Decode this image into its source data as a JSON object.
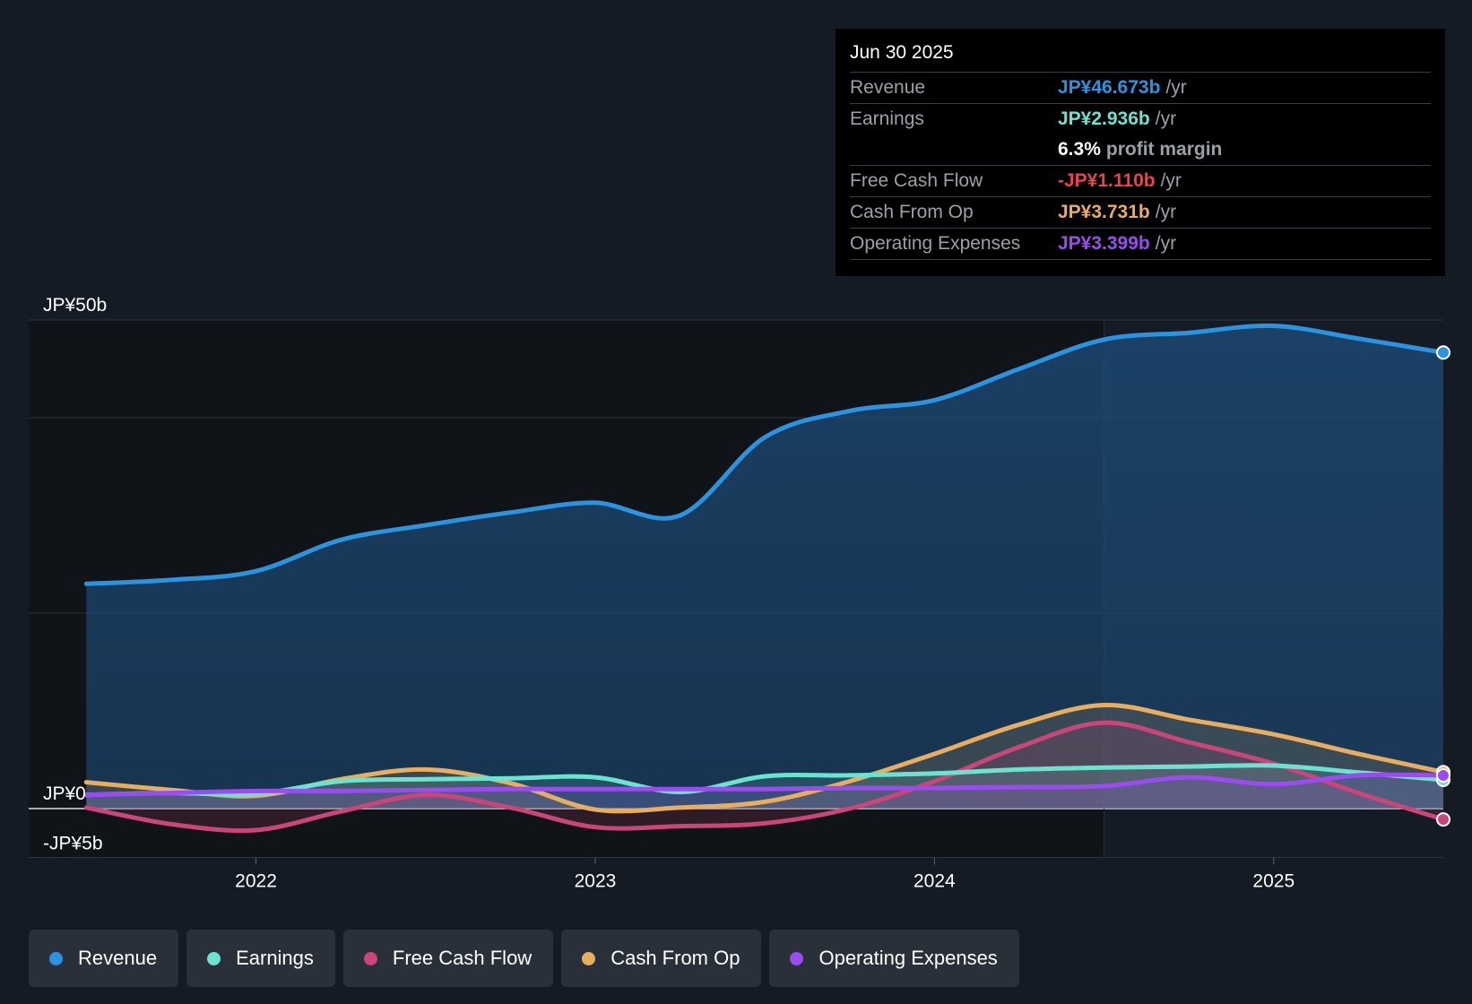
{
  "colors": {
    "revenue": "#2b93e0",
    "earnings": "#6be3d0",
    "free_cash_flow": "#c9457a",
    "cash_from_op": "#e8ad5f",
    "operating_expenses": "#9b4cf0"
  },
  "tooltip": {
    "date": "Jun 30 2025",
    "rows": [
      {
        "label": "Revenue",
        "value": "JP¥46.673b",
        "unit": "/yr"
      },
      {
        "label": "Earnings",
        "value": "JP¥2.936b",
        "unit": "/yr"
      },
      {
        "label": "",
        "value": "6.3%",
        "unit": "profit margin"
      },
      {
        "label": "Free Cash Flow",
        "value": "-JP¥1.110b",
        "unit": "/yr"
      },
      {
        "label": "Cash From Op",
        "value": "JP¥3.731b",
        "unit": "/yr"
      },
      {
        "label": "Operating Expenses",
        "value": "JP¥3.399b",
        "unit": "/yr"
      }
    ]
  },
  "legend": [
    {
      "label": "Revenue",
      "color": "#2b93e0"
    },
    {
      "label": "Earnings",
      "color": "#6be3d0"
    },
    {
      "label": "Free Cash Flow",
      "color": "#c9457a"
    },
    {
      "label": "Cash From Op",
      "color": "#e8ad5f"
    },
    {
      "label": "Operating Expenses",
      "color": "#9b4cf0"
    }
  ],
  "chart_data": {
    "type": "area",
    "title": "",
    "xlabel": "",
    "ylabel": "",
    "ylim": [
      -5,
      50
    ],
    "xlim": [
      2021.33,
      2025.5
    ],
    "y_tick_labels": [
      {
        "value": 50,
        "label": "JP¥50b"
      },
      {
        "value": 0,
        "label": "JP¥0"
      },
      {
        "value": -5,
        "label": "-JP¥5b"
      }
    ],
    "x_ticks": [
      {
        "value": 2022,
        "label": "2022"
      },
      {
        "value": 2023,
        "label": "2023"
      },
      {
        "value": 2024,
        "label": "2024"
      },
      {
        "value": 2025,
        "label": "2025"
      }
    ],
    "gridlines": [
      50,
      40,
      20,
      0
    ],
    "past_boundary_x": 2024.5,
    "series": [
      {
        "name": "Revenue",
        "key": "revenue",
        "x": [
          2021.5,
          2021.75,
          2022.0,
          2022.25,
          2022.5,
          2022.75,
          2023.0,
          2023.25,
          2023.5,
          2023.75,
          2024.0,
          2024.25,
          2024.5,
          2024.75,
          2025.0,
          2025.25,
          2025.5
        ],
        "y": [
          23.0,
          23.4,
          24.3,
          27.5,
          29.0,
          30.3,
          31.3,
          30.0,
          38.0,
          40.7,
          41.8,
          45.0,
          48.0,
          48.7,
          49.4,
          48.1,
          46.673
        ]
      },
      {
        "name": "Earnings",
        "key": "earnings",
        "x": [
          2021.5,
          2021.75,
          2022.0,
          2022.25,
          2022.5,
          2022.75,
          2023.0,
          2023.25,
          2023.5,
          2023.75,
          2024.0,
          2024.25,
          2024.5,
          2024.75,
          2025.0,
          2025.25,
          2025.5
        ],
        "y": [
          1.4,
          1.6,
          1.5,
          2.8,
          3.0,
          3.1,
          3.2,
          1.7,
          3.3,
          3.4,
          3.6,
          4.0,
          4.2,
          4.3,
          4.4,
          3.7,
          2.936
        ]
      },
      {
        "name": "Free Cash Flow",
        "key": "free_cash_flow",
        "x": [
          2021.5,
          2021.75,
          2022.0,
          2022.25,
          2022.5,
          2022.75,
          2023.0,
          2023.25,
          2023.5,
          2023.75,
          2024.0,
          2024.25,
          2024.5,
          2024.75,
          2025.0,
          2025.25,
          2025.5
        ],
        "y": [
          0.1,
          -1.6,
          -2.2,
          -0.3,
          1.4,
          0.1,
          -1.9,
          -1.8,
          -1.5,
          0.0,
          2.8,
          6.3,
          8.8,
          6.8,
          4.6,
          1.6,
          -1.11
        ]
      },
      {
        "name": "Cash From Op",
        "key": "cash_from_op",
        "x": [
          2021.5,
          2021.75,
          2022.0,
          2022.25,
          2022.5,
          2022.75,
          2023.0,
          2023.25,
          2023.5,
          2023.75,
          2024.0,
          2024.25,
          2024.5,
          2024.75,
          2025.0,
          2025.25,
          2025.5
        ],
        "y": [
          2.7,
          1.9,
          1.3,
          3.0,
          4.0,
          2.6,
          -0.1,
          0.1,
          0.7,
          2.8,
          5.6,
          8.6,
          10.6,
          9.1,
          7.6,
          5.6,
          3.731
        ]
      },
      {
        "name": "Operating Expenses",
        "key": "operating_expenses",
        "x": [
          2021.5,
          2021.75,
          2022.0,
          2022.25,
          2022.5,
          2022.75,
          2023.0,
          2023.25,
          2023.5,
          2023.75,
          2024.0,
          2024.25,
          2024.5,
          2024.75,
          2025.0,
          2025.25,
          2025.5
        ],
        "y": [
          1.4,
          1.6,
          1.8,
          1.8,
          1.9,
          2.0,
          2.0,
          2.0,
          2.0,
          2.1,
          2.1,
          2.2,
          2.3,
          3.2,
          2.5,
          3.4,
          3.399
        ]
      }
    ]
  }
}
